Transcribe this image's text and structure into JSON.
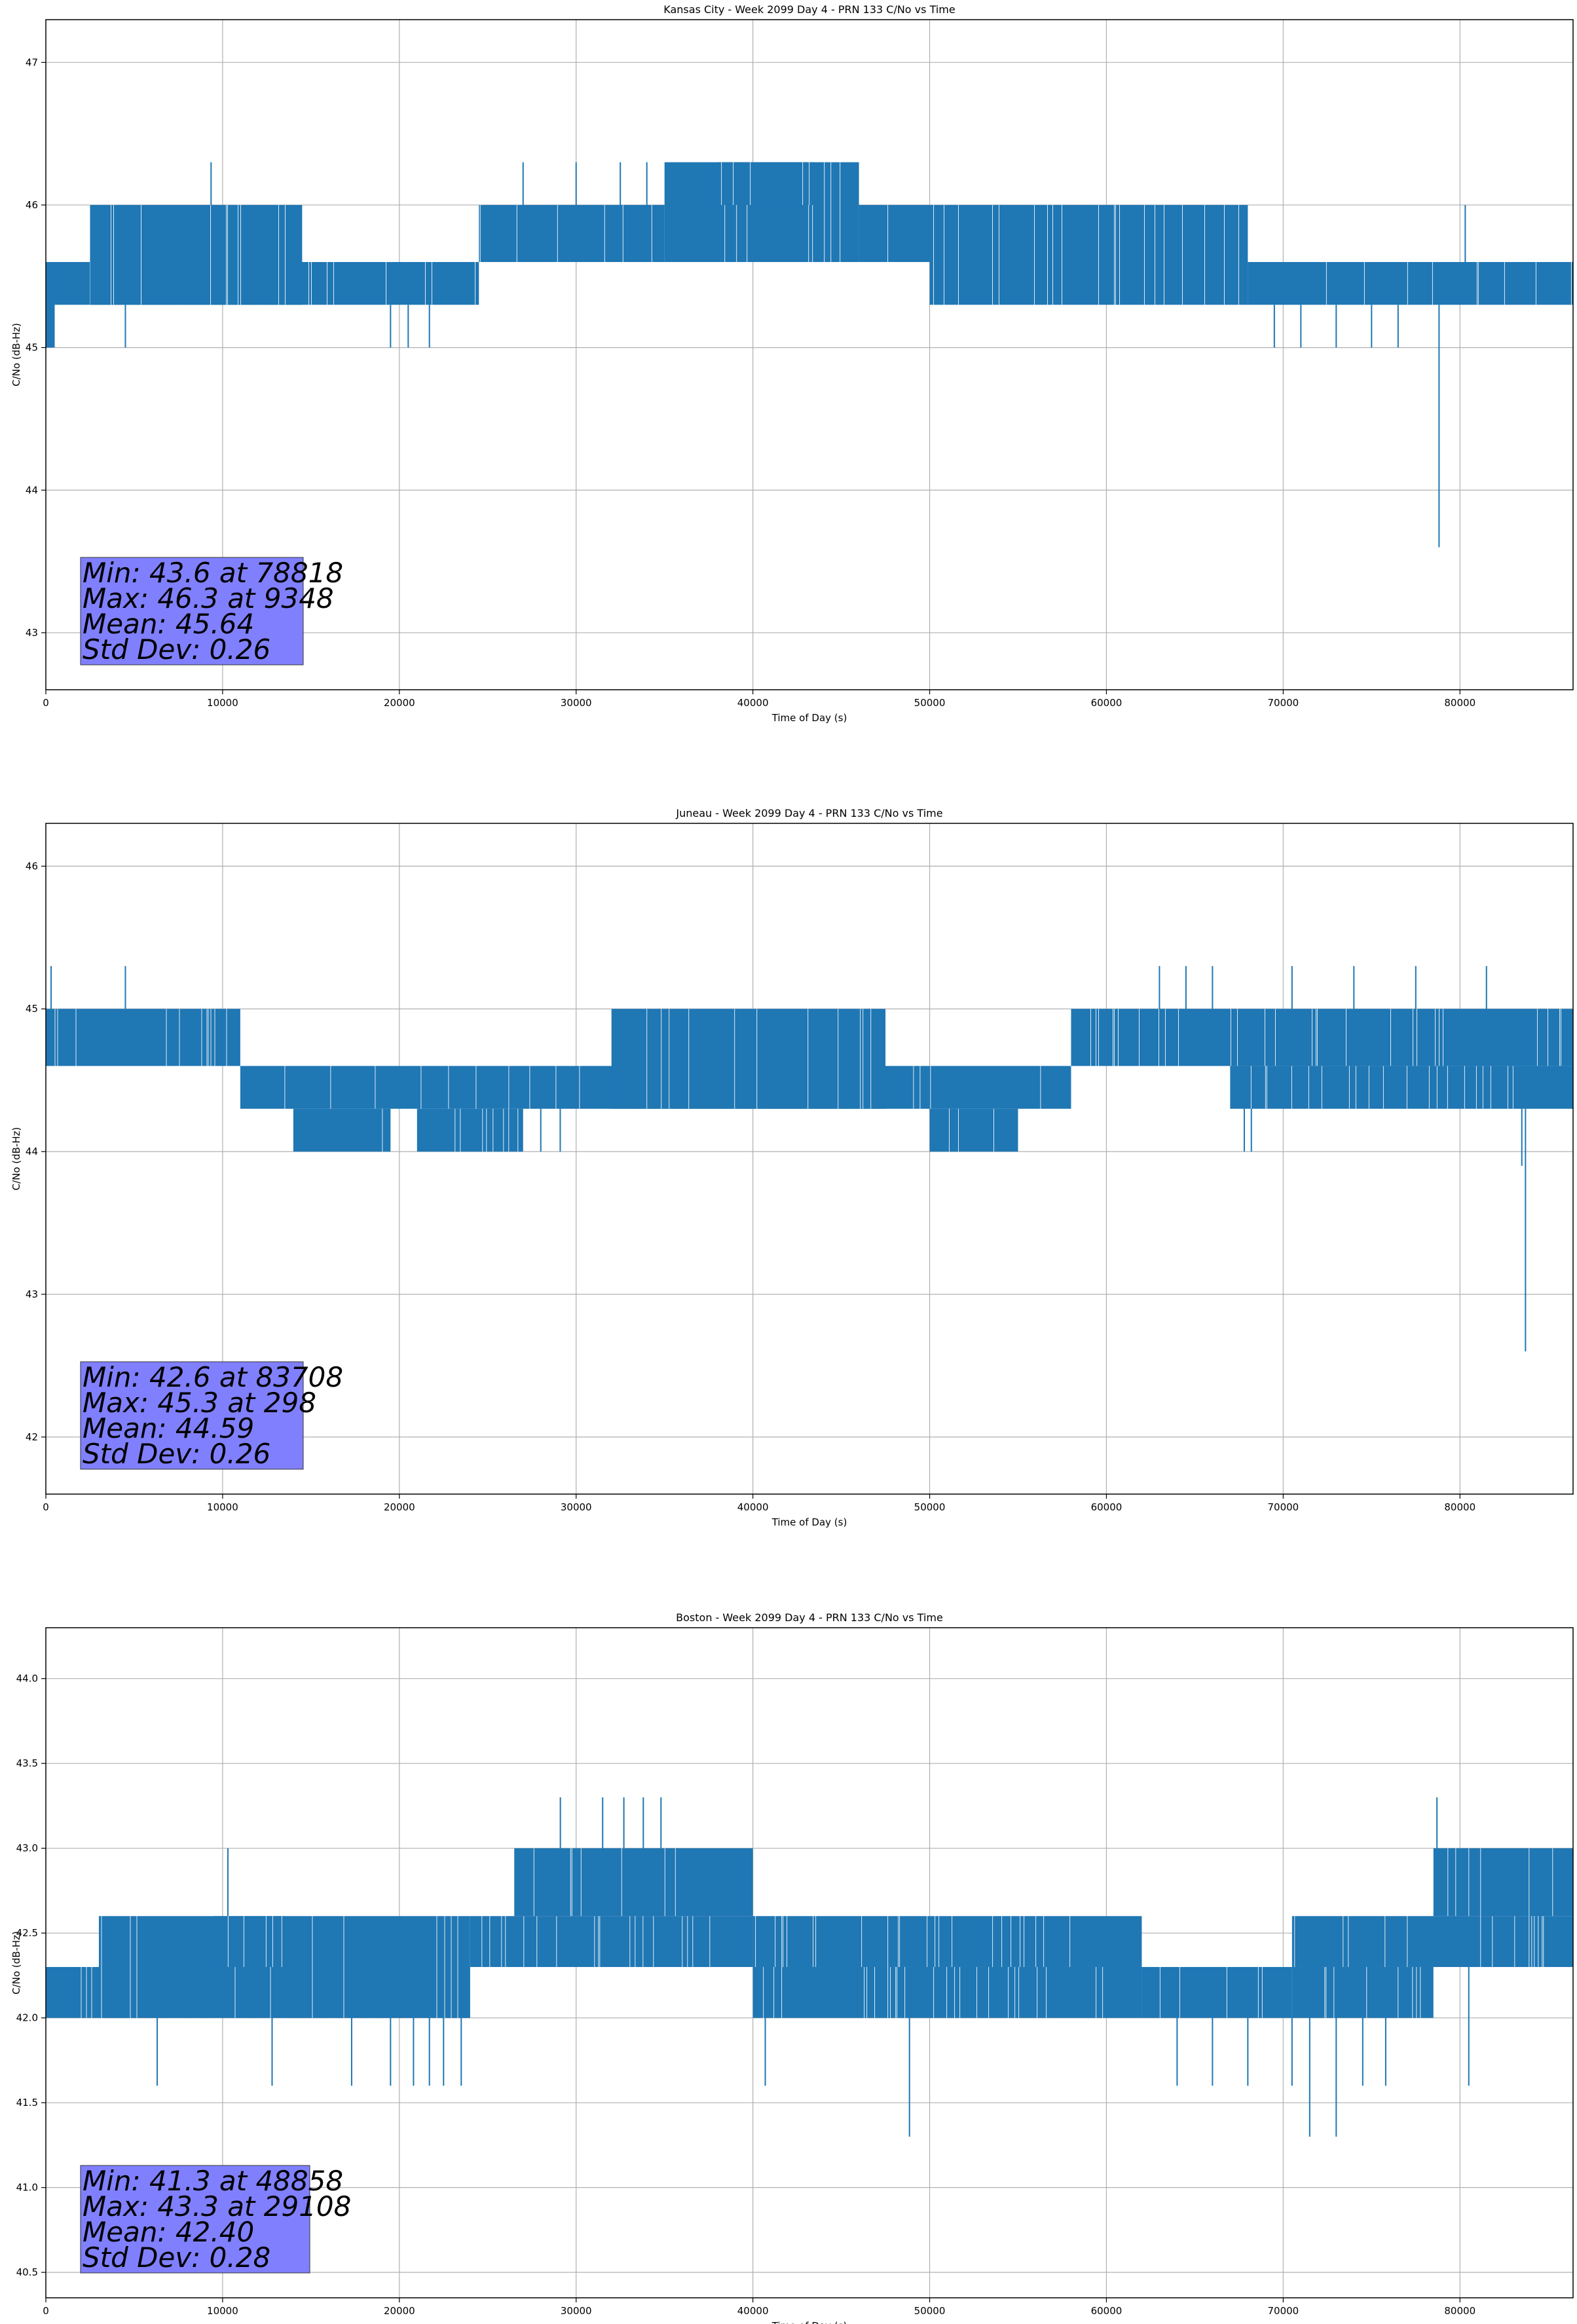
{
  "chart_data": [
    {
      "type": "line",
      "title": "Kansas City - Week 2099 Day 4 - PRN 133 C/No vs Time",
      "xlabel": "Time of Day (s)",
      "ylabel": "C/No (dB-Hz)",
      "xlim": [
        0,
        86400
      ],
      "ylim": [
        42.6,
        47.3
      ],
      "xticks": [
        0,
        10000,
        20000,
        30000,
        40000,
        50000,
        60000,
        70000,
        80000
      ],
      "yticks": [
        43,
        44,
        45,
        46,
        47
      ],
      "ytick_labels": [
        "43",
        "44",
        "45",
        "46",
        "47"
      ],
      "grid": true,
      "color": "#1f77b4",
      "stats": [
        "Min: 43.6 at 78818",
        "Max: 46.3 at 9348",
        "Mean: 45.64",
        "Std Dev: 0.26"
      ],
      "bands": [
        {
          "x": [
            0,
            500
          ],
          "y": [
            45.0,
            45.6
          ]
        },
        {
          "x": [
            500,
            24500
          ],
          "y": [
            45.3,
            45.6
          ]
        },
        {
          "x": [
            2500,
            14500
          ],
          "y": [
            45.3,
            46.0
          ]
        },
        {
          "x": [
            24500,
            35000
          ],
          "y": [
            45.6,
            46.0
          ]
        },
        {
          "x": [
            35000,
            46000
          ],
          "y": [
            45.6,
            46.3
          ]
        },
        {
          "x": [
            38000,
            43500
          ],
          "y": [
            46.0,
            46.3
          ]
        },
        {
          "x": [
            46000,
            50000
          ],
          "y": [
            45.6,
            46.0
          ]
        },
        {
          "x": [
            50000,
            68000
          ],
          "y": [
            45.3,
            46.0
          ]
        },
        {
          "x": [
            68000,
            86400
          ],
          "y": [
            45.3,
            45.6
          ]
        }
      ],
      "spikes": [
        {
          "x": 4500,
          "y0": 45.3,
          "y1": 45.0
        },
        {
          "x": 9348,
          "y0": 46.0,
          "y1": 46.3
        },
        {
          "x": 19500,
          "y0": 45.3,
          "y1": 45.0
        },
        {
          "x": 20500,
          "y0": 45.3,
          "y1": 45.0
        },
        {
          "x": 21700,
          "y0": 45.3,
          "y1": 45.0
        },
        {
          "x": 27000,
          "y0": 46.0,
          "y1": 46.3
        },
        {
          "x": 30000,
          "y0": 46.0,
          "y1": 46.3
        },
        {
          "x": 32500,
          "y0": 46.0,
          "y1": 46.3
        },
        {
          "x": 34000,
          "y0": 46.0,
          "y1": 46.3
        },
        {
          "x": 69500,
          "y0": 45.3,
          "y1": 45.0
        },
        {
          "x": 71000,
          "y0": 45.3,
          "y1": 45.0
        },
        {
          "x": 73000,
          "y0": 45.3,
          "y1": 45.0
        },
        {
          "x": 75000,
          "y0": 45.3,
          "y1": 45.0
        },
        {
          "x": 76500,
          "y0": 45.3,
          "y1": 45.0
        },
        {
          "x": 78818,
          "y0": 45.3,
          "y1": 43.6
        },
        {
          "x": 80300,
          "y0": 45.6,
          "y1": 46.0
        }
      ]
    },
    {
      "type": "line",
      "title": "Juneau - Week 2099 Day 4 - PRN 133 C/No vs Time",
      "xlabel": "Time of Day (s)",
      "ylabel": "C/No (dB-Hz)",
      "xlim": [
        0,
        86400
      ],
      "ylim": [
        41.6,
        46.3
      ],
      "xticks": [
        0,
        10000,
        20000,
        30000,
        40000,
        50000,
        60000,
        70000,
        80000
      ],
      "yticks": [
        42,
        43,
        44,
        45,
        46
      ],
      "ytick_labels": [
        "42",
        "43",
        "44",
        "45",
        "46"
      ],
      "grid": true,
      "color": "#1f77b4",
      "stats": [
        "Min: 42.6 at 83708",
        "Max: 45.3 at 298",
        "Mean: 44.59",
        "Std Dev: 0.26"
      ],
      "bands": [
        {
          "x": [
            0,
            11000
          ],
          "y": [
            44.6,
            45.0
          ]
        },
        {
          "x": [
            11000,
            58000
          ],
          "y": [
            44.3,
            44.6
          ]
        },
        {
          "x": [
            32000,
            47500
          ],
          "y": [
            44.3,
            45.0
          ]
        },
        {
          "x": [
            14000,
            19500
          ],
          "y": [
            44.0,
            44.3
          ]
        },
        {
          "x": [
            21000,
            27000
          ],
          "y": [
            44.0,
            44.3
          ]
        },
        {
          "x": [
            50000,
            55000
          ],
          "y": [
            44.0,
            44.3
          ]
        },
        {
          "x": [
            58000,
            86400
          ],
          "y": [
            44.6,
            45.0
          ]
        },
        {
          "x": [
            67000,
            86400
          ],
          "y": [
            44.3,
            44.6
          ]
        }
      ],
      "spikes": [
        {
          "x": 298,
          "y0": 45.0,
          "y1": 45.3
        },
        {
          "x": 4500,
          "y0": 45.0,
          "y1": 45.3
        },
        {
          "x": 28000,
          "y0": 44.3,
          "y1": 44.0
        },
        {
          "x": 29100,
          "y0": 44.3,
          "y1": 44.0
        },
        {
          "x": 63000,
          "y0": 45.0,
          "y1": 45.3
        },
        {
          "x": 64500,
          "y0": 45.0,
          "y1": 45.3
        },
        {
          "x": 66000,
          "y0": 45.0,
          "y1": 45.3
        },
        {
          "x": 67800,
          "y0": 44.3,
          "y1": 44.0
        },
        {
          "x": 68200,
          "y0": 44.3,
          "y1": 44.0
        },
        {
          "x": 70500,
          "y0": 45.0,
          "y1": 45.3
        },
        {
          "x": 74000,
          "y0": 45.0,
          "y1": 45.3
        },
        {
          "x": 77500,
          "y0": 45.0,
          "y1": 45.3
        },
        {
          "x": 81500,
          "y0": 45.0,
          "y1": 45.3
        },
        {
          "x": 83500,
          "y0": 44.3,
          "y1": 43.9
        },
        {
          "x": 83708,
          "y0": 44.3,
          "y1": 42.6
        }
      ]
    },
    {
      "type": "line",
      "title": "Boston - Week 2099 Day 4 - PRN 133 C/No vs Time",
      "xlabel": "Time of Day (s)",
      "ylabel": "C/No (dB-Hz)",
      "xlim": [
        0,
        86400
      ],
      "ylim": [
        40.35,
        44.3
      ],
      "xticks": [
        0,
        10000,
        20000,
        30000,
        40000,
        50000,
        60000,
        70000,
        80000
      ],
      "yticks": [
        40.5,
        41.0,
        41.5,
        42.0,
        42.5,
        43.0,
        43.5,
        44.0
      ],
      "ytick_labels": [
        "40.5",
        "41.0",
        "41.5",
        "42.0",
        "42.5",
        "43.0",
        "43.5",
        "44.0"
      ],
      "grid": true,
      "color": "#1f77b4",
      "stats": [
        "Min: 41.3 at 48858",
        "Max: 43.3 at 29108",
        "Mean: 42.40",
        "Std Dev: 0.28"
      ],
      "bands": [
        {
          "x": [
            0,
            24000
          ],
          "y": [
            42.0,
            42.3
          ]
        },
        {
          "x": [
            3000,
            24000
          ],
          "y": [
            42.0,
            42.6
          ]
        },
        {
          "x": [
            9500,
            13500
          ],
          "y": [
            42.3,
            42.6
          ]
        },
        {
          "x": [
            24000,
            40000
          ],
          "y": [
            42.3,
            42.6
          ]
        },
        {
          "x": [
            26500,
            40000
          ],
          "y": [
            42.6,
            43.0
          ]
        },
        {
          "x": [
            40000,
            62000
          ],
          "y": [
            42.3,
            42.6
          ]
        },
        {
          "x": [
            40000,
            62000
          ],
          "y": [
            42.0,
            42.3
          ]
        },
        {
          "x": [
            62000,
            70500
          ],
          "y": [
            42.0,
            42.3
          ]
        },
        {
          "x": [
            70500,
            86400
          ],
          "y": [
            42.3,
            42.6
          ]
        },
        {
          "x": [
            78500,
            86400
          ],
          "y": [
            42.6,
            43.0
          ]
        },
        {
          "x": [
            70500,
            78500
          ],
          "y": [
            42.0,
            42.3
          ]
        }
      ],
      "spikes": [
        {
          "x": 6300,
          "y0": 42.0,
          "y1": 41.6
        },
        {
          "x": 10300,
          "y0": 42.6,
          "y1": 43.0
        },
        {
          "x": 12800,
          "y0": 42.0,
          "y1": 41.6
        },
        {
          "x": 17300,
          "y0": 42.0,
          "y1": 41.6
        },
        {
          "x": 19500,
          "y0": 42.0,
          "y1": 41.6
        },
        {
          "x": 20800,
          "y0": 42.0,
          "y1": 41.6
        },
        {
          "x": 21700,
          "y0": 42.0,
          "y1": 41.6
        },
        {
          "x": 22500,
          "y0": 42.0,
          "y1": 41.6
        },
        {
          "x": 23500,
          "y0": 42.0,
          "y1": 41.6
        },
        {
          "x": 29108,
          "y0": 43.0,
          "y1": 43.3
        },
        {
          "x": 31500,
          "y0": 43.0,
          "y1": 43.3
        },
        {
          "x": 32700,
          "y0": 43.0,
          "y1": 43.3
        },
        {
          "x": 33800,
          "y0": 43.0,
          "y1": 43.3
        },
        {
          "x": 34800,
          "y0": 43.0,
          "y1": 43.3
        },
        {
          "x": 40700,
          "y0": 42.0,
          "y1": 41.6
        },
        {
          "x": 48858,
          "y0": 42.0,
          "y1": 41.3
        },
        {
          "x": 64000,
          "y0": 42.0,
          "y1": 41.6
        },
        {
          "x": 66000,
          "y0": 42.0,
          "y1": 41.6
        },
        {
          "x": 68000,
          "y0": 42.0,
          "y1": 41.6
        },
        {
          "x": 70500,
          "y0": 42.0,
          "y1": 41.6
        },
        {
          "x": 71500,
          "y0": 42.0,
          "y1": 41.3
        },
        {
          "x": 73000,
          "y0": 42.0,
          "y1": 41.3
        },
        {
          "x": 74500,
          "y0": 42.0,
          "y1": 41.6
        },
        {
          "x": 75800,
          "y0": 42.0,
          "y1": 41.6
        },
        {
          "x": 78700,
          "y0": 43.0,
          "y1": 43.3
        },
        {
          "x": 80500,
          "y0": 42.3,
          "y1": 41.6
        }
      ]
    }
  ]
}
